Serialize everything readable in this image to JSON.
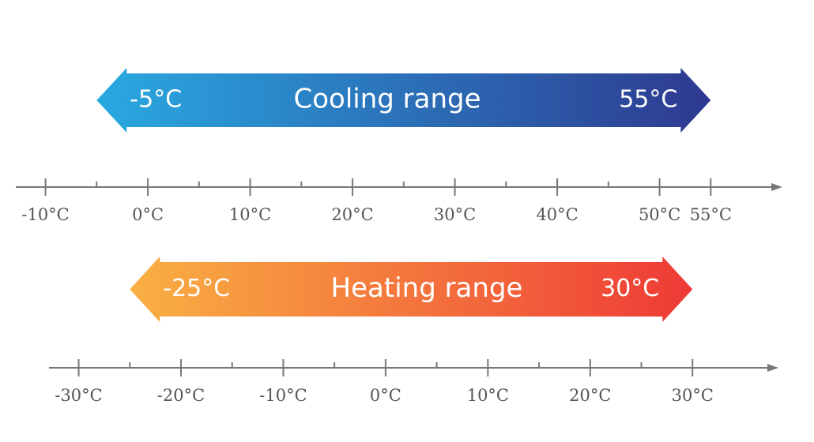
{
  "cooling": {
    "label": "Cooling range",
    "min": -5,
    "min_label": "-5°C",
    "max": 55,
    "max_label": "55°C"
  },
  "heating": {
    "label": "Heating range",
    "min": -25,
    "min_label": "-25°C",
    "max": 30,
    "max_label": "30°C"
  },
  "cooling_axis": {
    "xlim": [
      -12.9,
      62
    ],
    "ticks": [
      {
        "value": -10,
        "label": "-10°C"
      },
      {
        "value": 0,
        "label": "0°C"
      },
      {
        "value": 10,
        "label": "10°C"
      },
      {
        "value": 20,
        "label": "20°C"
      },
      {
        "value": 30,
        "label": "30°C"
      },
      {
        "value": 40,
        "label": "40°C"
      },
      {
        "value": 50,
        "label": "50°C"
      },
      {
        "value": 55,
        "label": "55°C"
      }
    ],
    "minor_ticks": [
      -5,
      5,
      15,
      25,
      35,
      45
    ]
  },
  "heating_axis": {
    "xlim": [
      -32.9,
      38.4
    ],
    "ticks": [
      {
        "value": -30,
        "label": "-30°C"
      },
      {
        "value": -20,
        "label": "-20°C"
      },
      {
        "value": -10,
        "label": "-10°C"
      },
      {
        "value": 0,
        "label": "0°C"
      },
      {
        "value": 10,
        "label": "10°C"
      },
      {
        "value": 20,
        "label": "20°C"
      },
      {
        "value": 30,
        "label": "30°C"
      }
    ],
    "minor_ticks": [
      -25,
      -15,
      -5,
      5,
      15,
      25
    ]
  }
}
